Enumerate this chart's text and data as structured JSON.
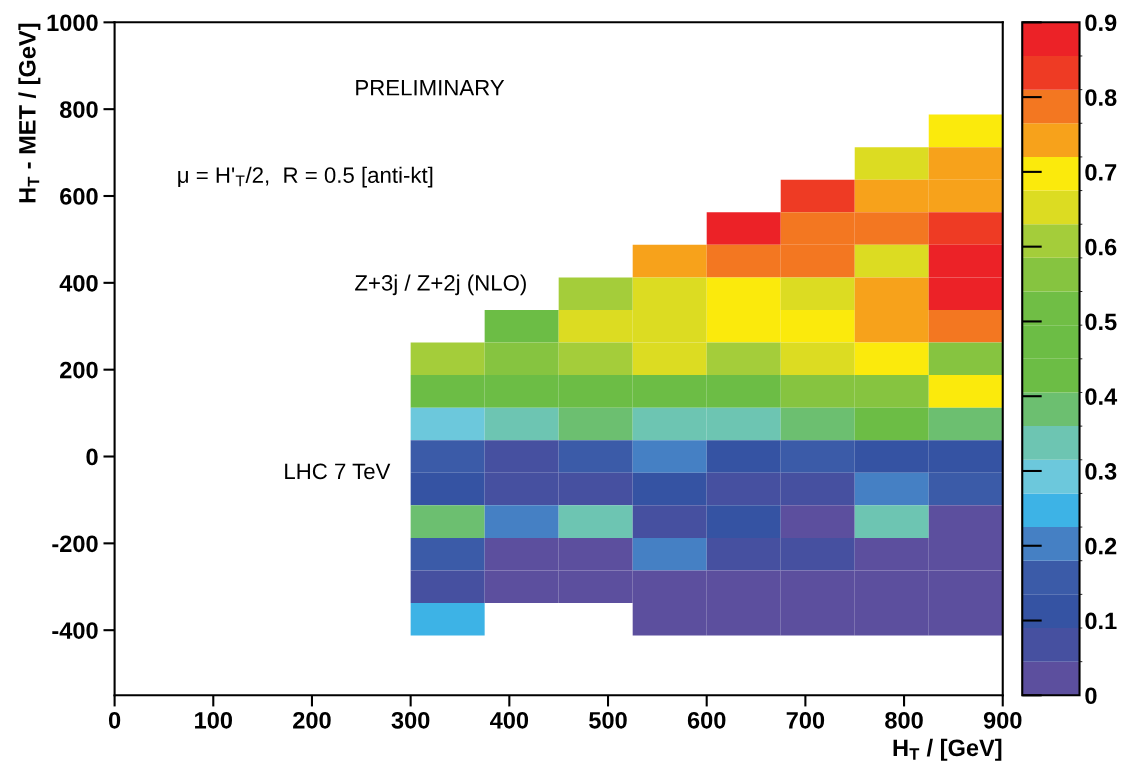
{
  "chart_data": {
    "type": "heatmap",
    "xlabel": "H$_{T}$ / [GeV]",
    "ylabel": "H$_{T}$ - MET / [GeV]",
    "annotations": [
      "PRELIMINARY",
      "μ = H'$_{T}$/2,  R = 0.5 [anti-kt]",
      "Z+3j / Z+2j (NLO)",
      "LHC 7 TeV"
    ],
    "x": [
      337.5,
      412.5,
      487.5,
      562.5,
      637.5,
      712.5,
      787.5,
      862.5
    ],
    "y": [
      750,
      675,
      600,
      525,
      450,
      375,
      300,
      225,
      150,
      75,
      0,
      -75,
      -150,
      -225,
      -300,
      -375
    ],
    "cells": [
      [
        null,
        null,
        null,
        null,
        null,
        null,
        null,
        0.7
      ],
      [
        null,
        null,
        null,
        null,
        null,
        null,
        0.65,
        0.74
      ],
      [
        null,
        null,
        null,
        null,
        null,
        0.83,
        0.74,
        0.74
      ],
      [
        null,
        null,
        null,
        null,
        0.88,
        0.79,
        0.79,
        0.83
      ],
      [
        null,
        null,
        null,
        0.74,
        0.79,
        0.79,
        0.65,
        0.88
      ],
      [
        null,
        null,
        0.61,
        0.65,
        0.7,
        0.65,
        0.74,
        0.88
      ],
      [
        null,
        0.47,
        0.65,
        0.65,
        0.7,
        0.7,
        0.74,
        0.79
      ],
      [
        0.61,
        0.56,
        0.61,
        0.65,
        0.61,
        0.65,
        0.7,
        0.56
      ],
      [
        0.47,
        0.47,
        0.47,
        0.47,
        0.47,
        0.56,
        0.56,
        0.7
      ],
      [
        0.29,
        0.34,
        0.38,
        0.34,
        0.34,
        0.38,
        0.47,
        0.38
      ],
      [
        0.16,
        0.07,
        0.16,
        0.2,
        0.11,
        0.16,
        0.11,
        0.11
      ],
      [
        0.11,
        0.07,
        0.07,
        0.11,
        0.07,
        0.07,
        0.2,
        0.16
      ],
      [
        0.38,
        0.2,
        0.34,
        0.07,
        0.11,
        0.02,
        0.34,
        0.02
      ],
      [
        0.16,
        0.02,
        0.02,
        0.2,
        0.07,
        0.07,
        0.02,
        0.02
      ],
      [
        0.07,
        0.02,
        0.02,
        0.02,
        0.02,
        0.02,
        0.02,
        0.02
      ],
      [
        0.25,
        null,
        null,
        0.02,
        0.02,
        0.02,
        0.02,
        0.02
      ]
    ],
    "colors": [
      "#5c4f9e",
      "#4650a0",
      "#3553a3",
      "#3b5ba8",
      "#4580c4",
      "#3db3e6",
      "#6cc8dc",
      "#6dc5b2",
      "#6cbf70",
      "#6cbd45",
      "#6cbd45",
      "#70be45",
      "#86c440",
      "#a4cd3a",
      "#dcdc22",
      "#fbea0c",
      "#f7a21b",
      "#f37721",
      "#ee3b24",
      "#ec2227"
    ],
    "clim": [
      0,
      0.9
    ],
    "cticks": [
      0,
      0.1,
      0.2,
      0.3,
      0.4,
      0.5,
      0.6,
      0.7,
      0.8,
      0.9
    ],
    "xlim": [
      0,
      900
    ],
    "xticks": [
      0,
      100,
      200,
      300,
      400,
      500,
      600,
      700,
      800,
      900
    ],
    "ylim": [
      -550,
      1000
    ],
    "yticks": [
      -400,
      -200,
      0,
      200,
      400,
      600,
      800,
      1000
    ],
    "grid": false
  }
}
